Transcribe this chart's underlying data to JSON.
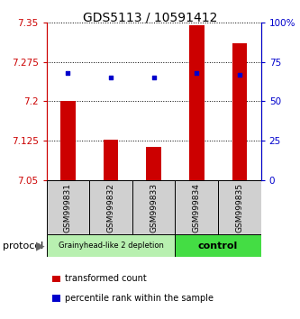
{
  "title": "GDS5113 / 10591412",
  "samples": [
    "GSM999831",
    "GSM999832",
    "GSM999833",
    "GSM999834",
    "GSM999835"
  ],
  "red_values": [
    7.2,
    7.127,
    7.113,
    7.345,
    7.31
  ],
  "blue_values": [
    68,
    65,
    65,
    68,
    67
  ],
  "ylim_left": [
    7.05,
    7.35
  ],
  "ylim_right": [
    0,
    100
  ],
  "yticks_left": [
    7.05,
    7.125,
    7.2,
    7.275,
    7.35
  ],
  "yticks_right": [
    0,
    25,
    50,
    75,
    100
  ],
  "ytick_labels_right": [
    "0",
    "25",
    "50",
    "75",
    "100%"
  ],
  "bar_color": "#cc0000",
  "dot_color": "#0000cc",
  "bar_bottom": 7.05,
  "groups": [
    {
      "label": "Grainyhead-like 2 depletion",
      "indices": [
        0,
        1,
        2
      ],
      "color": "#b8f0b0"
    },
    {
      "label": "control",
      "indices": [
        3,
        4
      ],
      "color": "#44dd44"
    }
  ],
  "protocol_label": "protocol",
  "legend_red": "transformed count",
  "legend_blue": "percentile rank within the sample",
  "title_fontsize": 10,
  "tick_fontsize": 7.5,
  "label_fontsize": 8
}
